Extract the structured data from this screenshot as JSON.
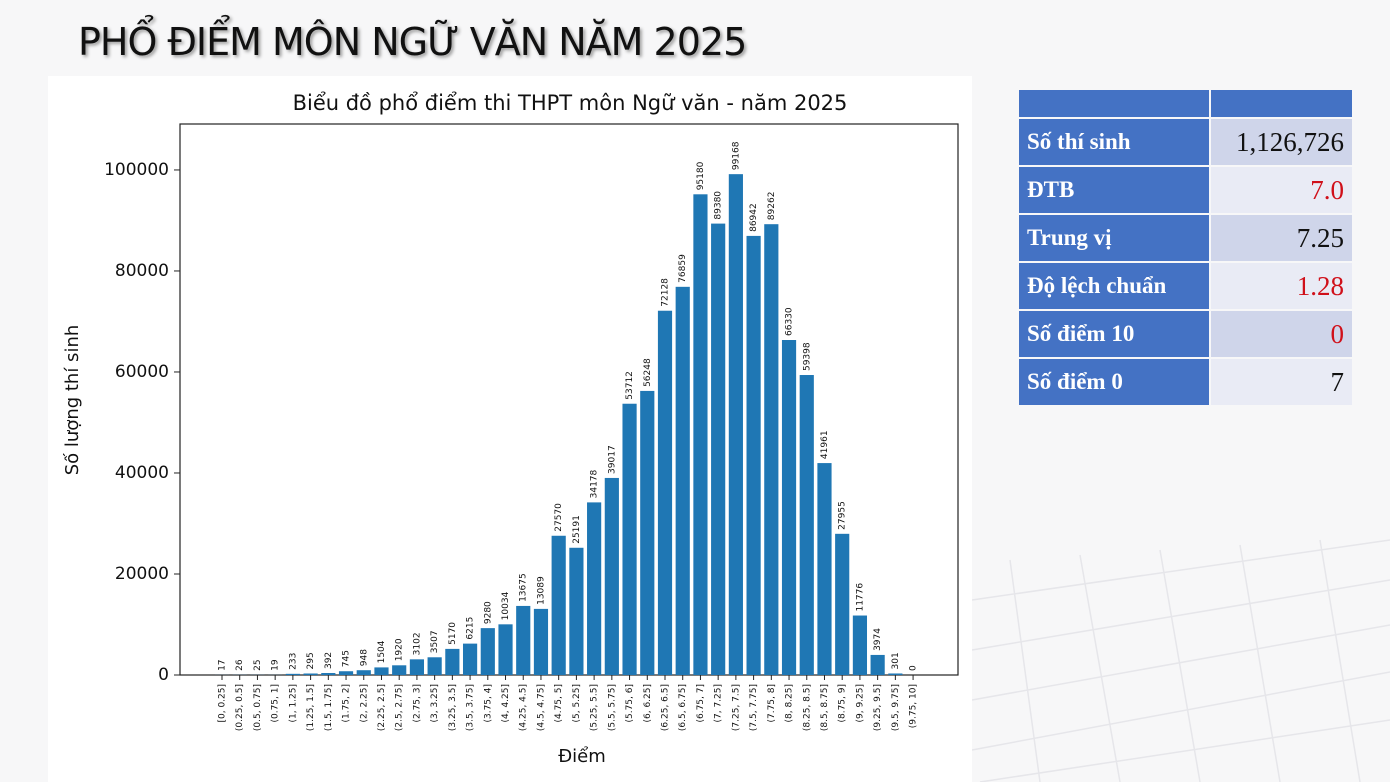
{
  "slide_title": "PHỔ ĐIỂM MÔN NGỮ VĂN NĂM 2025",
  "chart_data": {
    "type": "bar",
    "title": "Biểu đồ phổ điểm thi THPT môn Ngữ văn - năm 2025",
    "x_label": "Điểm",
    "y_label": "Số lượng thí sinh",
    "categories": [
      "[0, 0.25]",
      "(0.25, 0.5]",
      "(0.5, 0.75]",
      "(0.75, 1]",
      "(1, 1.25]",
      "(1.25, 1.5]",
      "(1.5, 1.75]",
      "(1.75, 2]",
      "(2, 2.25]",
      "(2.25, 2.5]",
      "(2.5, 2.75]",
      "(2.75, 3]",
      "(3, 3.25]",
      "(3.25, 3.5]",
      "(3.5, 3.75]",
      "(3.75, 4]",
      "(4, 4.25]",
      "(4.25, 4.5]",
      "(4.5, 4.75]",
      "(4.75, 5]",
      "(5, 5.25]",
      "(5.25, 5.5]",
      "(5.5, 5.75]",
      "(5.75, 6]",
      "(6, 6.25]",
      "(6.25, 6.5]",
      "(6.5, 6.75]",
      "(6.75, 7]",
      "(7, 7.25]",
      "(7.25, 7.5]",
      "(7.5, 7.75]",
      "(7.75, 8]",
      "(8, 8.25]",
      "(8.25, 8.5]",
      "(8.5, 8.75]",
      "(8.75, 9]",
      "(9, 9.25]",
      "(9.25, 9.5]",
      "(9.5, 9.75]",
      "(9.75, 10]"
    ],
    "values": [
      17,
      26,
      25,
      19,
      233,
      295,
      392,
      745,
      948,
      1504,
      1920,
      3102,
      3507,
      5170,
      6215,
      9280,
      10034,
      13675,
      13089,
      27570,
      25191,
      34178,
      39017,
      53712,
      56248,
      72128,
      76859,
      95180,
      89380,
      99168,
      86942,
      89262,
      66330,
      59398,
      41961,
      27955,
      11776,
      3974,
      301,
      0
    ],
    "color": "#1f77b4",
    "ylim": [
      0,
      109100
    ],
    "yticks": [
      0,
      20000,
      40000,
      60000,
      80000,
      100000
    ]
  },
  "table": {
    "rows": [
      {
        "label": "Số thí sinh",
        "value": "1,126,726",
        "color": "#111111"
      },
      {
        "label": "ĐTB",
        "value": "7.0",
        "color": "#d0101a"
      },
      {
        "label": "Trung vị",
        "value": "7.25",
        "color": "#111111"
      },
      {
        "label": "Độ lệch chuẩn",
        "value": "1.28",
        "color": "#d0101a"
      },
      {
        "label": "Số điểm 10",
        "value": "0",
        "color": "#d0101a"
      },
      {
        "label": "Số điểm 0",
        "value": "7",
        "color": "#111111"
      }
    ]
  }
}
